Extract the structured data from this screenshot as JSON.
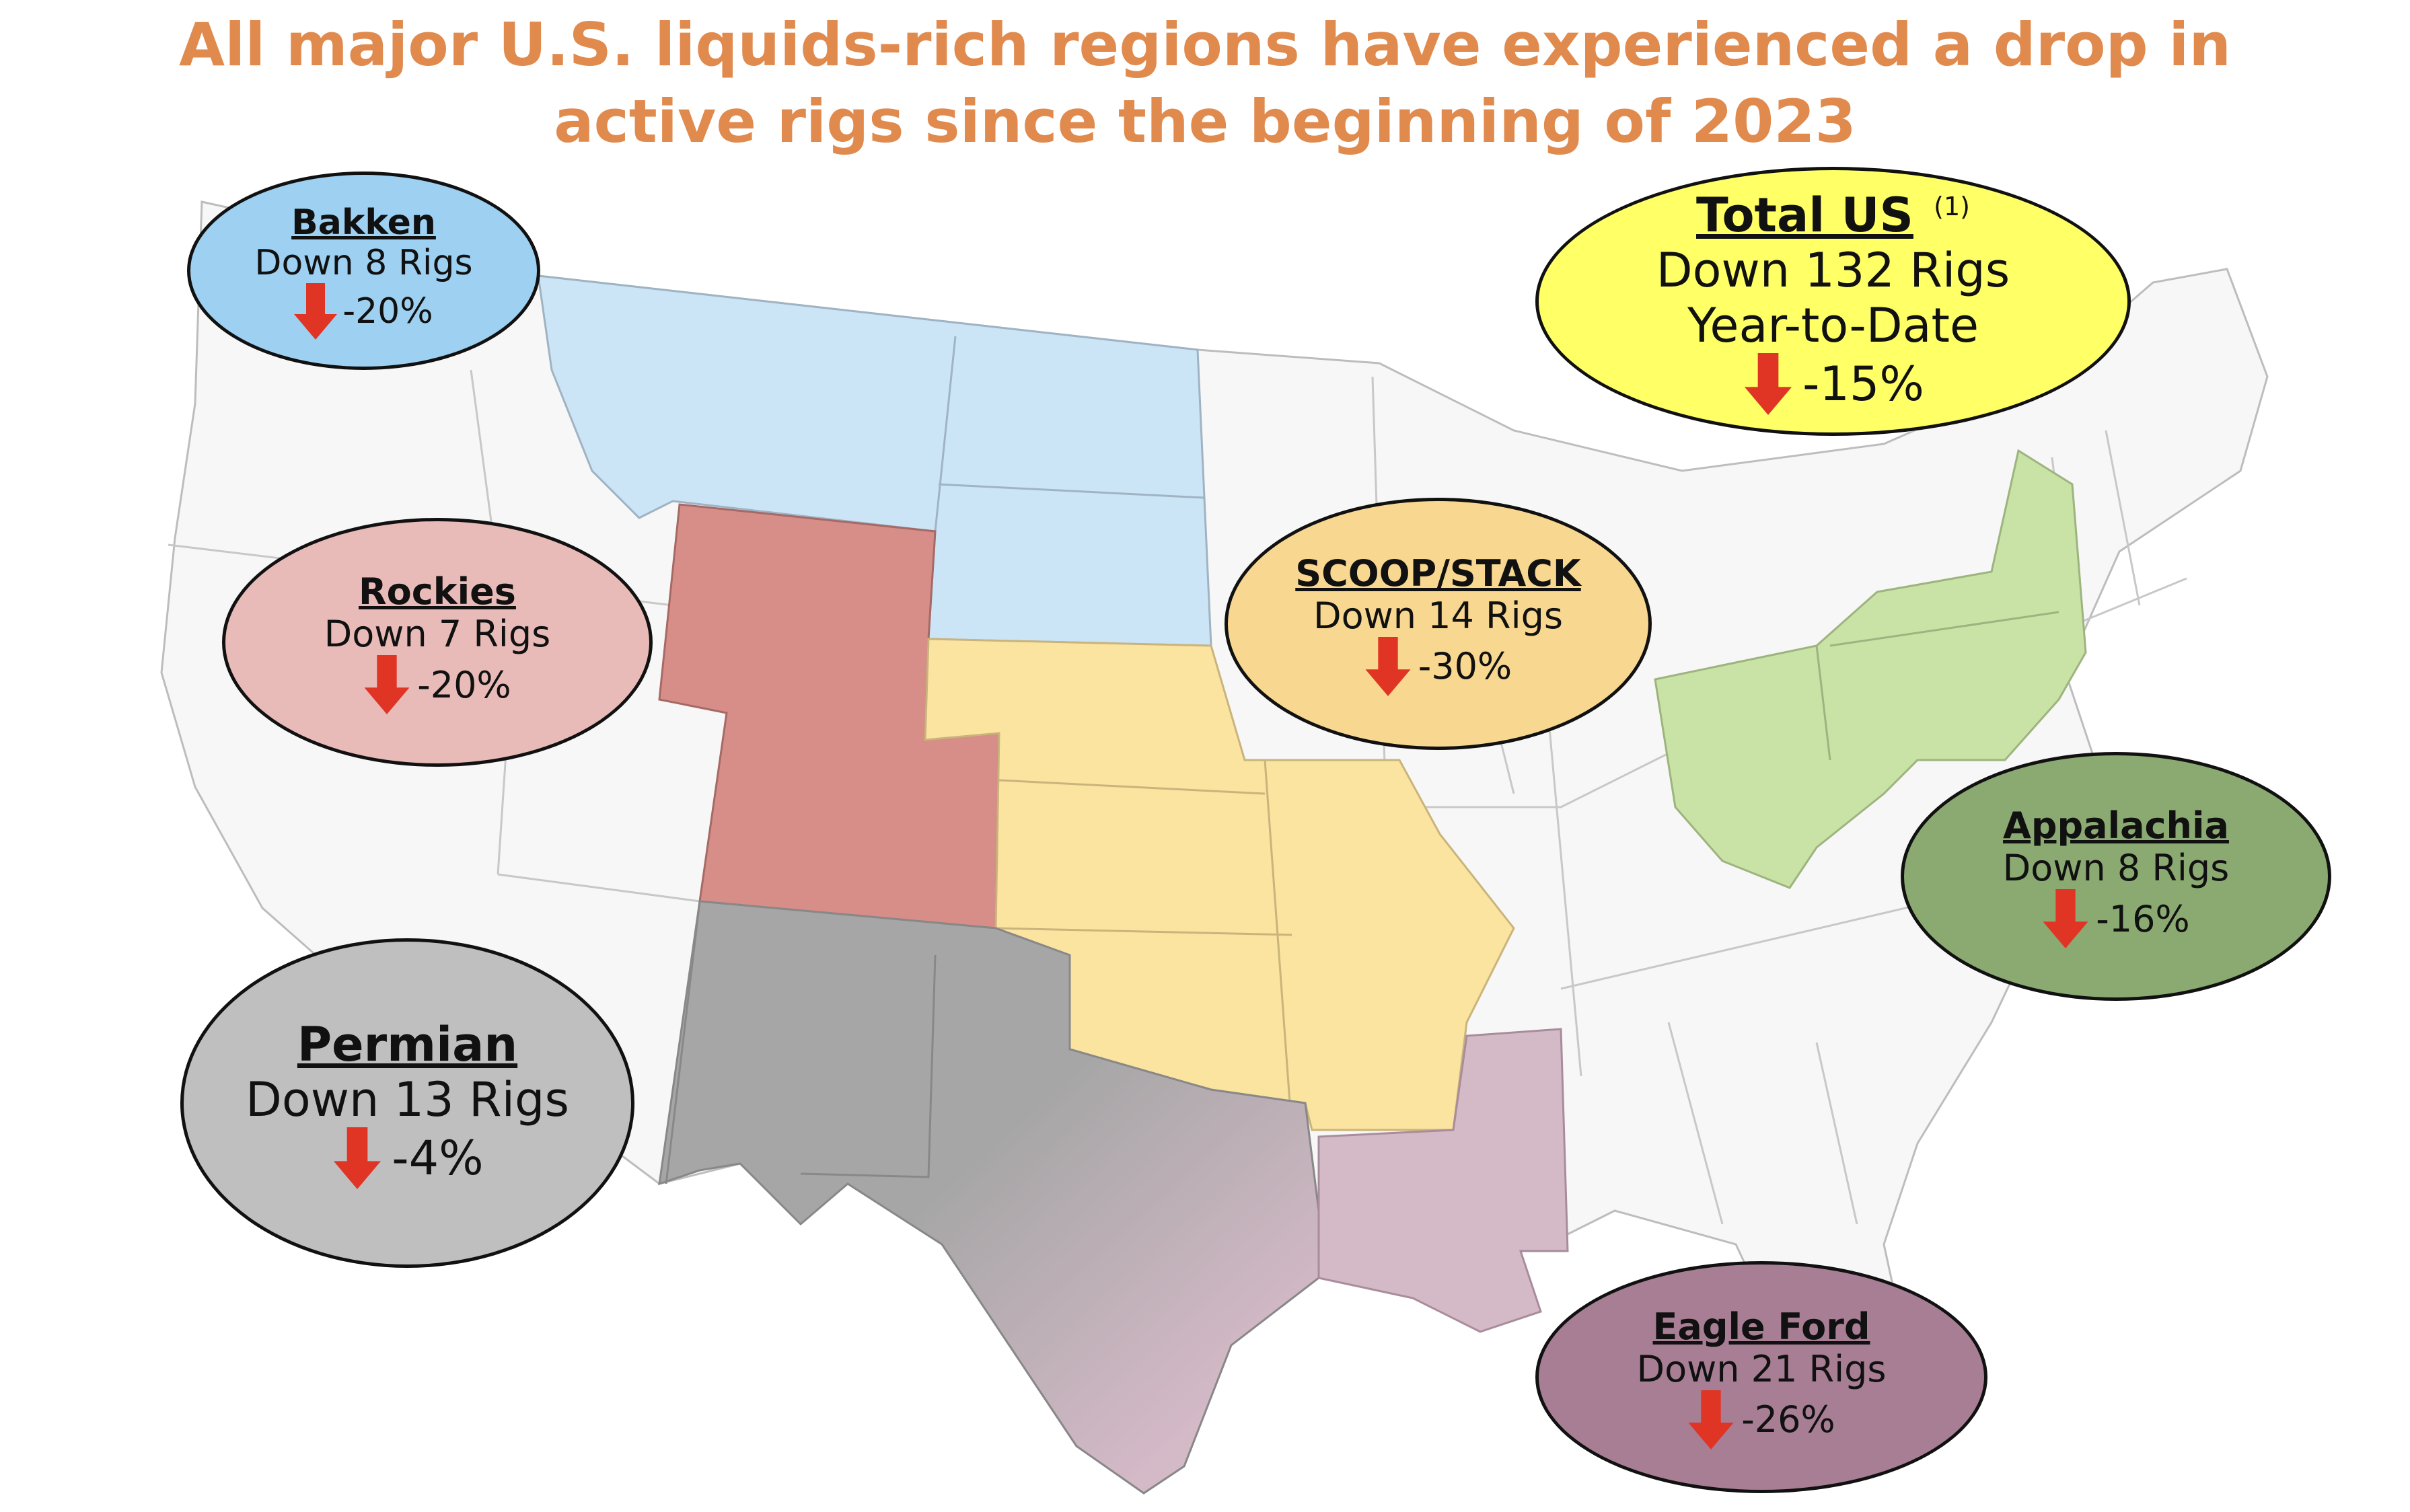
{
  "title": {
    "line1": "All major U.S. liquids-rich regions have experienced a drop in",
    "line2": "active rigs since the beginning of 2023"
  },
  "colors": {
    "title": "#E08A4E",
    "bakken": "#CCE5F6",
    "rockies": "#D78E88",
    "scoop_stack": "#FBE3A0",
    "permian": "#A6A6A6",
    "eagle_ford": "#D4B9C7",
    "appalachia": "#C9E2A5",
    "arrow": "#E03424"
  },
  "regions": {
    "bakken": {
      "name": "Bakken",
      "change": "Down 8 Rigs",
      "pct": "-20%",
      "fill": "#9DD0F1"
    },
    "rockies": {
      "name": "Rockies",
      "change": "Down 7 Rigs",
      "pct": "-20%",
      "fill": "#E8BBB8"
    },
    "scoop_stack": {
      "name": "SCOOP/STACK",
      "change": "Down 14 Rigs",
      "pct": "-30%",
      "fill": "#F8D790"
    },
    "permian": {
      "name": "Permian",
      "change": "Down 13 Rigs",
      "pct": "-4%",
      "fill": "#BFBFBF"
    },
    "eagle_ford": {
      "name": "Eagle Ford",
      "change": "Down 21 Rigs",
      "pct": "-26%",
      "fill": "#A77E94"
    },
    "appalachia": {
      "name": "Appalachia",
      "change": "Down 8 Rigs",
      "pct": "-16%",
      "fill": "#8AAA72"
    },
    "total_us": {
      "name": "Total US",
      "footnote": "(1)",
      "change": "Down 132 Rigs",
      "period": "Year-to-Date",
      "pct": "-15%",
      "fill": "#FFFF66"
    }
  },
  "icons": [
    "down-arrow-icon"
  ]
}
